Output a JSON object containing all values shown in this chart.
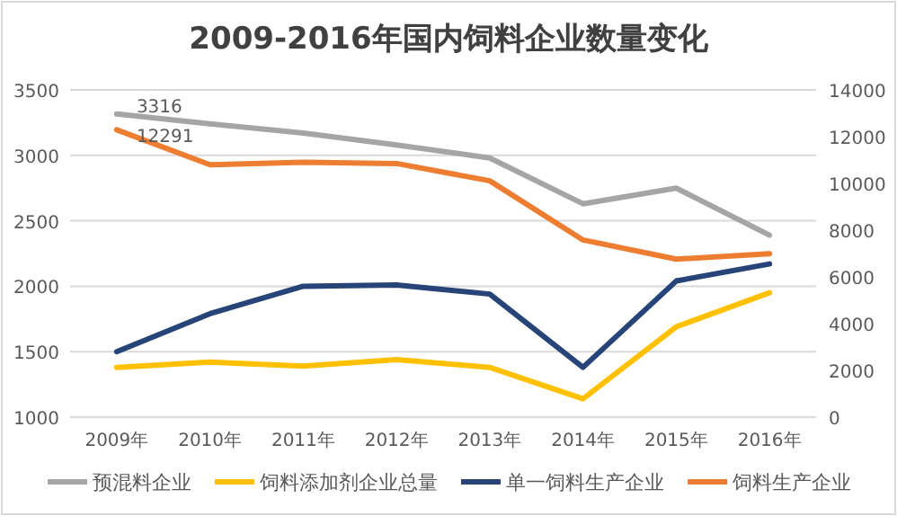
{
  "chart_data": {
    "type": "line",
    "title": "2009-2016年国内饲料企业数量变化",
    "categories": [
      "2009年",
      "2010年",
      "2011年",
      "2012年",
      "2013年",
      "2014年",
      "2015年",
      "2016年"
    ],
    "series": [
      {
        "name": "预混料企业",
        "color": "#a5a5a5",
        "values": [
          3316,
          3240,
          3170,
          3080,
          2980,
          2630,
          2750,
          2390
        ],
        "value_labels": [
          "3316",
          null,
          null,
          null,
          null,
          null,
          null,
          null
        ]
      },
      {
        "name": "饲料添加剂企业总量",
        "color": "#ffc000",
        "values": [
          1380,
          1420,
          1390,
          1440,
          1380,
          1140,
          1690,
          1950
        ]
      },
      {
        "name": "单一饲料生产企业",
        "color": "#264478",
        "values": [
          1500,
          1790,
          2000,
          2010,
          1940,
          1380,
          2040,
          2170
        ]
      },
      {
        "name": "饲料生产企业",
        "color": "#ed7d31",
        "axis": "y2",
        "values": [
          12291,
          10800,
          10900,
          10850,
          10110,
          7580,
          6760,
          6990
        ],
        "value_labels": [
          "12291",
          null,
          null,
          null,
          null,
          null,
          null,
          null
        ]
      }
    ],
    "ylim": [
      1000,
      3500
    ],
    "yticks": [
      1000,
      1500,
      2000,
      2500,
      3000,
      3500
    ],
    "y2lim": [
      0,
      14000
    ],
    "y2ticks": [
      0,
      2000,
      4000,
      6000,
      8000,
      10000,
      12000,
      14000
    ],
    "grid": "y",
    "legend": "bottom"
  }
}
